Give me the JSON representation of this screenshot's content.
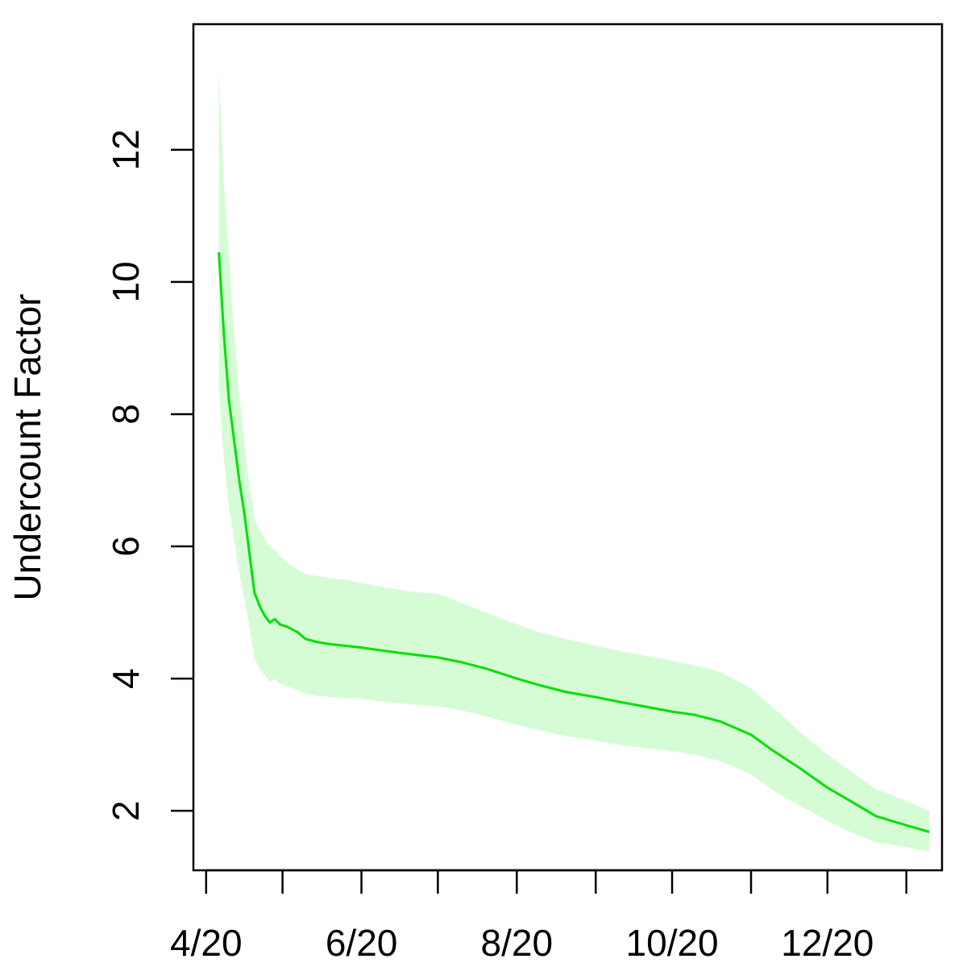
{
  "chart_data": {
    "type": "line",
    "title": "",
    "xlabel": "",
    "ylabel": "Undercount Factor",
    "x_tick_labels": [
      "4/20",
      "6/20",
      "8/20",
      "10/20",
      "12/20"
    ],
    "x_tick_dates": [
      "2020-04-01",
      "2020-05-01",
      "2020-06-01",
      "2020-07-01",
      "2020-08-01",
      "2020-09-01",
      "2020-10-01",
      "2020-11-01",
      "2020-12-01",
      "2021-01-01"
    ],
    "x_tick_label_dates": [
      "2020-04-01",
      "2020-06-01",
      "2020-08-01",
      "2020-10-01",
      "2020-12-01"
    ],
    "y_ticks": [
      2,
      4,
      6,
      8,
      10,
      12
    ],
    "xlim": [
      "2020-03-27",
      "2021-01-15"
    ],
    "ylim": [
      1.1,
      13.9
    ],
    "grid": false,
    "colors": {
      "line": "#00e000",
      "band": "#d6fcd6",
      "axis": "#000000"
    },
    "series": [
      {
        "x": [
          "2020-04-06",
          "2020-04-08",
          "2020-04-10",
          "2020-04-12",
          "2020-04-14",
          "2020-04-16",
          "2020-04-18",
          "2020-04-20",
          "2020-04-22",
          "2020-04-24",
          "2020-04-26",
          "2020-04-28",
          "2020-04-30",
          "2020-05-03",
          "2020-05-07",
          "2020-05-10",
          "2020-05-15",
          "2020-05-20",
          "2020-05-25",
          "2020-06-01",
          "2020-06-10",
          "2020-06-20",
          "2020-07-01",
          "2020-07-10",
          "2020-07-20",
          "2020-08-01",
          "2020-08-10",
          "2020-08-20",
          "2020-09-01",
          "2020-09-10",
          "2020-09-20",
          "2020-10-01",
          "2020-10-10",
          "2020-10-20",
          "2020-11-01",
          "2020-11-10",
          "2020-11-20",
          "2020-12-01",
          "2020-12-10",
          "2020-12-20",
          "2021-01-01",
          "2021-01-10"
        ],
        "y": [
          10.45,
          9.2,
          8.2,
          7.6,
          7.0,
          6.5,
          5.9,
          5.3,
          5.1,
          4.95,
          4.85,
          4.9,
          4.82,
          4.78,
          4.7,
          4.6,
          4.55,
          4.52,
          4.5,
          4.47,
          4.42,
          4.37,
          4.32,
          4.25,
          4.15,
          4.0,
          3.9,
          3.8,
          3.72,
          3.65,
          3.58,
          3.5,
          3.45,
          3.35,
          3.15,
          2.9,
          2.65,
          2.35,
          2.15,
          1.92,
          1.78,
          1.68
        ],
        "lower": [
          8.4,
          7.3,
          6.6,
          6.1,
          5.6,
          5.2,
          4.8,
          4.3,
          4.15,
          4.05,
          3.95,
          4.0,
          3.92,
          3.88,
          3.82,
          3.77,
          3.74,
          3.72,
          3.71,
          3.69,
          3.65,
          3.61,
          3.58,
          3.52,
          3.43,
          3.3,
          3.22,
          3.13,
          3.06,
          3.0,
          2.95,
          2.9,
          2.85,
          2.75,
          2.55,
          2.3,
          2.08,
          1.85,
          1.68,
          1.52,
          1.45,
          1.38
        ],
        "upper": [
          13.2,
          11.5,
          10.4,
          9.2,
          8.3,
          7.6,
          6.9,
          6.4,
          6.25,
          6.1,
          6.0,
          5.95,
          5.85,
          5.75,
          5.65,
          5.58,
          5.55,
          5.52,
          5.5,
          5.45,
          5.38,
          5.32,
          5.28,
          5.15,
          5.0,
          4.82,
          4.7,
          4.6,
          4.5,
          4.42,
          4.35,
          4.27,
          4.2,
          4.1,
          3.85,
          3.55,
          3.2,
          2.85,
          2.6,
          2.33,
          2.15,
          2.0
        ]
      }
    ]
  }
}
